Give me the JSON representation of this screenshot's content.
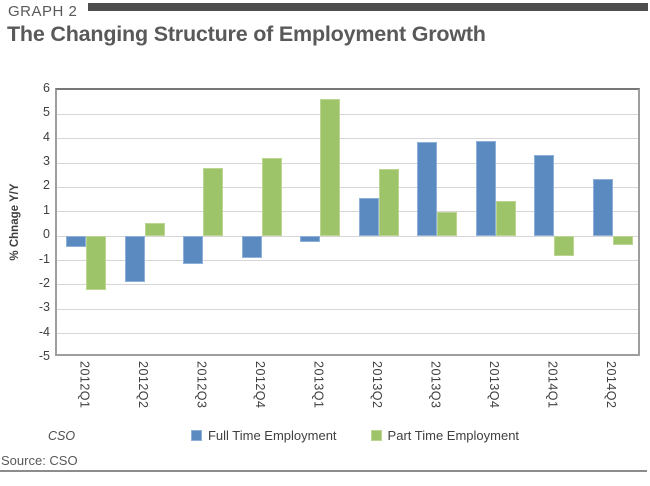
{
  "header": {
    "kicker": "GRAPH 2",
    "title": "The Changing Structure of Employment Growth"
  },
  "chart_data": {
    "type": "bar",
    "categories": [
      "2012Q1",
      "2012Q2",
      "2012Q3",
      "2012Q4",
      "2013Q1",
      "2013Q2",
      "2013Q3",
      "2013Q4",
      "2014Q1",
      "2014Q2"
    ],
    "series": [
      {
        "name": "Full Time Employment",
        "color": "#5b8ac0",
        "border_color": "#8fb1d9",
        "values": [
          -0.45,
          -1.9,
          -1.15,
          -0.9,
          -0.25,
          1.55,
          3.85,
          3.9,
          3.35,
          2.35
        ]
      },
      {
        "name": "Part Time Employment",
        "color": "#9ec46a",
        "border_color": "#bdd593",
        "values": [
          -2.2,
          0.55,
          2.8,
          3.2,
          5.65,
          2.75,
          1.0,
          1.45,
          -0.8,
          -0.35
        ]
      }
    ],
    "title": "The Changing Structure of Employment Growth",
    "xlabel": "",
    "ylabel": "% Chnage Y/Y",
    "ylim": [
      -5,
      6
    ],
    "ytick_step": 1,
    "grid": true,
    "legend_position": "bottom",
    "attribution": "CSO"
  },
  "footer": {
    "source": "Source: CSO"
  }
}
